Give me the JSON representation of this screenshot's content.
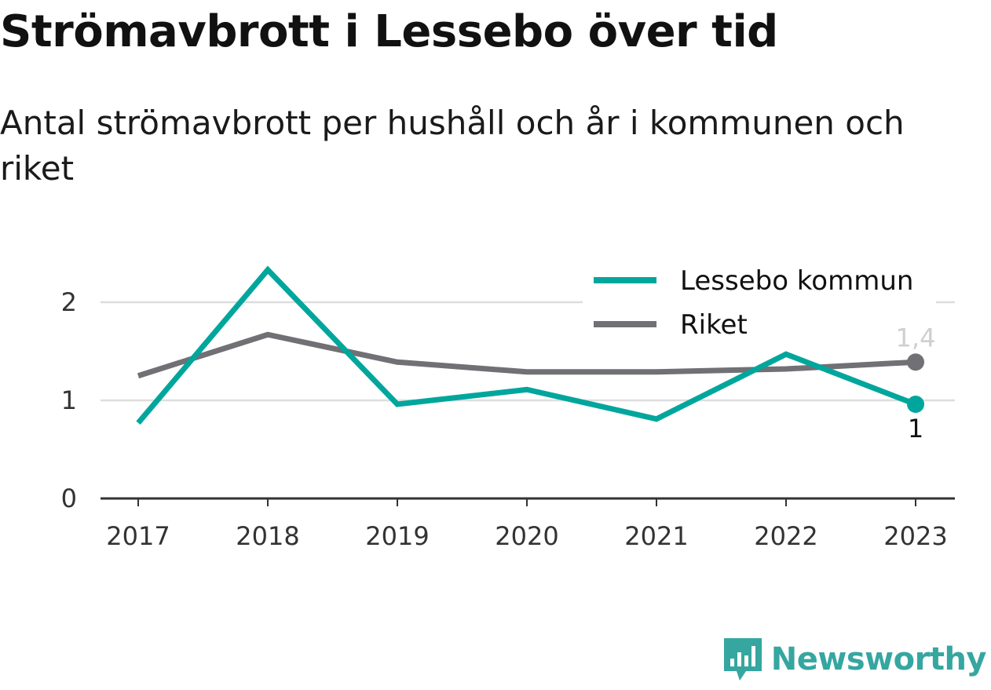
{
  "header": {
    "title": "Strömavbrott i Lessebo över tid",
    "subtitle": "Antal strömavbrott per hushåll och år i kommunen och riket"
  },
  "brand": {
    "name": "Newsworthy",
    "color": "#36a6a0",
    "icon": "newsworthy-logo-icon"
  },
  "colors": {
    "lessebo": "#00a69c",
    "riket": "#707075",
    "grid": "#dddddd",
    "axis": "#333333"
  },
  "chart_data": {
    "type": "line",
    "x": [
      "2017",
      "2018",
      "2019",
      "2020",
      "2021",
      "2022",
      "2023"
    ],
    "series": [
      {
        "name": "Lessebo kommun",
        "color": "#00a69c",
        "values": [
          0.77,
          2.33,
          0.96,
          1.11,
          0.81,
          1.47,
          0.96
        ],
        "end_label": "1"
      },
      {
        "name": "Riket",
        "color": "#707075",
        "values": [
          1.25,
          1.67,
          1.39,
          1.29,
          1.29,
          1.32,
          1.39
        ],
        "end_label": "1,4"
      }
    ],
    "ylim": [
      0,
      2.4
    ],
    "yticks": [
      "0",
      "1",
      "2"
    ],
    "grid": true,
    "legend": "top-right",
    "xlabel": "",
    "ylabel": ""
  }
}
